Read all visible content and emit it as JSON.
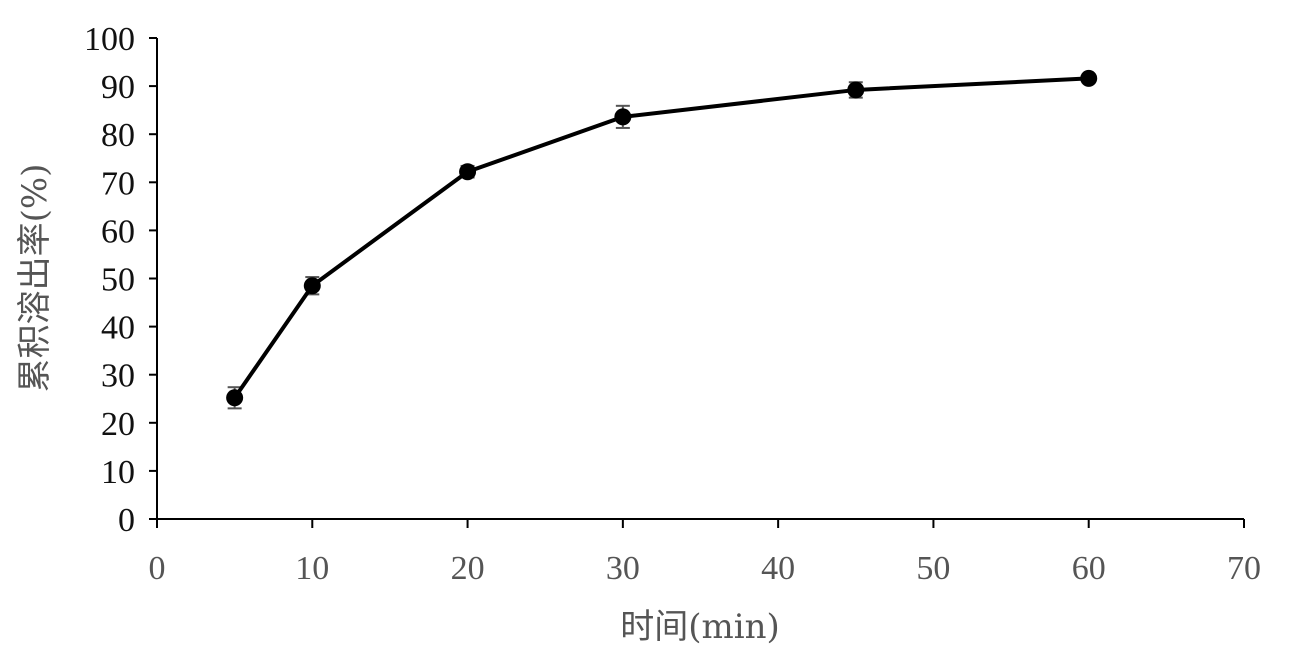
{
  "chart_data": {
    "type": "line",
    "title": "",
    "xlabel": "时间(min)",
    "ylabel": "累积溶出率(%)",
    "xlim": [
      0,
      70
    ],
    "ylim": [
      0,
      100
    ],
    "x_ticks": [
      0,
      10,
      20,
      30,
      40,
      50,
      60,
      70
    ],
    "y_ticks": [
      0,
      10,
      20,
      30,
      40,
      50,
      60,
      70,
      80,
      90,
      100
    ],
    "grid": false,
    "legend": "none",
    "series": [
      {
        "x": [
          5,
          10,
          20,
          30,
          45,
          60
        ],
        "values": [
          25.2,
          48.5,
          72.2,
          83.6,
          89.2,
          91.6
        ],
        "error": [
          2.2,
          1.8,
          1.2,
          2.3,
          1.6,
          0.8
        ]
      }
    ],
    "colors": {
      "line": "#000000",
      "marker": "#000000",
      "error_bar": "#555555",
      "axis": "#000000",
      "x_tick_label": "#555555",
      "y_tick_label": "#111111",
      "axis_title": "#555555"
    }
  }
}
